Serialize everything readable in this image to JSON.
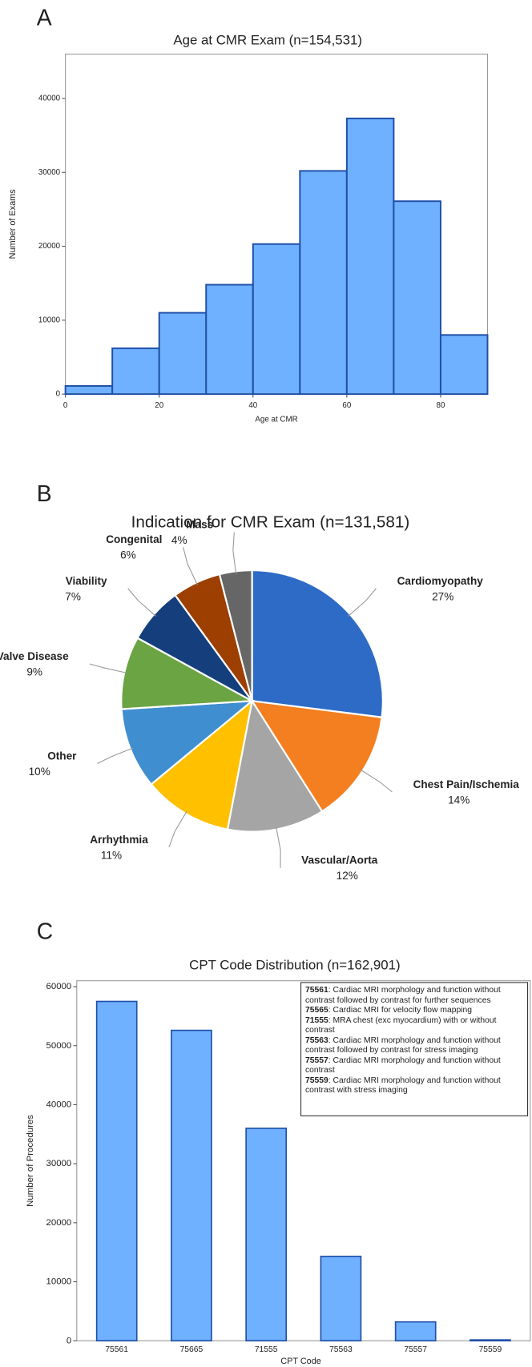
{
  "chart_data": [
    {
      "type": "histogram",
      "panel": "A",
      "title": "Age at CMR Exam (n=154,531)",
      "x_label": "Age at CMR",
      "y_label": "Number of Exams",
      "bins": [
        0,
        10,
        20,
        30,
        40,
        50,
        60,
        70,
        80,
        90
      ],
      "values": [
        1100,
        6200,
        11000,
        14800,
        20300,
        30200,
        37300,
        26100,
        8000
      ],
      "color": "#6fb0ff",
      "edge_color": "#1f4fa8",
      "xlim": [
        0,
        90
      ],
      "xticks": [
        0,
        20,
        40,
        60,
        80
      ],
      "ylim": [
        0,
        46000
      ],
      "yticks": [
        0,
        10000,
        20000,
        30000,
        40000
      ]
    },
    {
      "type": "pie",
      "panel": "B",
      "title": "Indication for CMR Exam (n=131,581)",
      "categories": [
        "Cardiomyopathy",
        "Chest Pain/Ischemia",
        "Vascular/Aorta",
        "Arrhythmia",
        "Other",
        "Valve Disease",
        "Viability",
        "Congenital",
        "Mass"
      ],
      "values": [
        27,
        14,
        12,
        11,
        10,
        9,
        7,
        6,
        4
      ],
      "value_labels": [
        "27%",
        "14%",
        "12%",
        "11%",
        "10%",
        "9%",
        "7%",
        "6%",
        "4%"
      ],
      "colors": [
        "#2e6bc6",
        "#f47f20",
        "#a5a5a5",
        "#ffc000",
        "#3f8ed0",
        "#6aa443",
        "#143f7c",
        "#9c3f00",
        "#666666"
      ]
    },
    {
      "type": "bar",
      "panel": "C",
      "title": "CPT Code Distribution (n=162,901)",
      "x_label": "CPT Code",
      "y_label": "Number of Procedures",
      "categories": [
        "75561",
        "75665",
        "71555",
        "75563",
        "75557",
        "75559"
      ],
      "values": [
        57500,
        52600,
        36000,
        14300,
        3200,
        150
      ],
      "color": "#6fb0ff",
      "edge_color": "#1f4fa8",
      "ylim": [
        0,
        61000
      ],
      "yticks": [
        0,
        10000,
        20000,
        30000,
        40000,
        50000,
        60000
      ],
      "notes": [
        {
          "code": "75561",
          "text": ": Cardiac MRI morphology and function without contrast followed by contrast for further sequences"
        },
        {
          "code": "75565",
          "text": ": Cardiac MRI for velocity flow mapping"
        },
        {
          "code": "71555",
          "text": ": MRA chest (exc myocardium) with or without contrast"
        },
        {
          "code": "75563",
          "text": ": Cardiac MRI morphology and function without contrast followed by contrast for stress imaging"
        },
        {
          "code": "75557",
          "text": ": Cardiac MRI morphology and function without contrast"
        },
        {
          "code": "75559",
          "text": ": Cardiac MRI morphology and function without contrast with stress imaging"
        }
      ]
    }
  ]
}
